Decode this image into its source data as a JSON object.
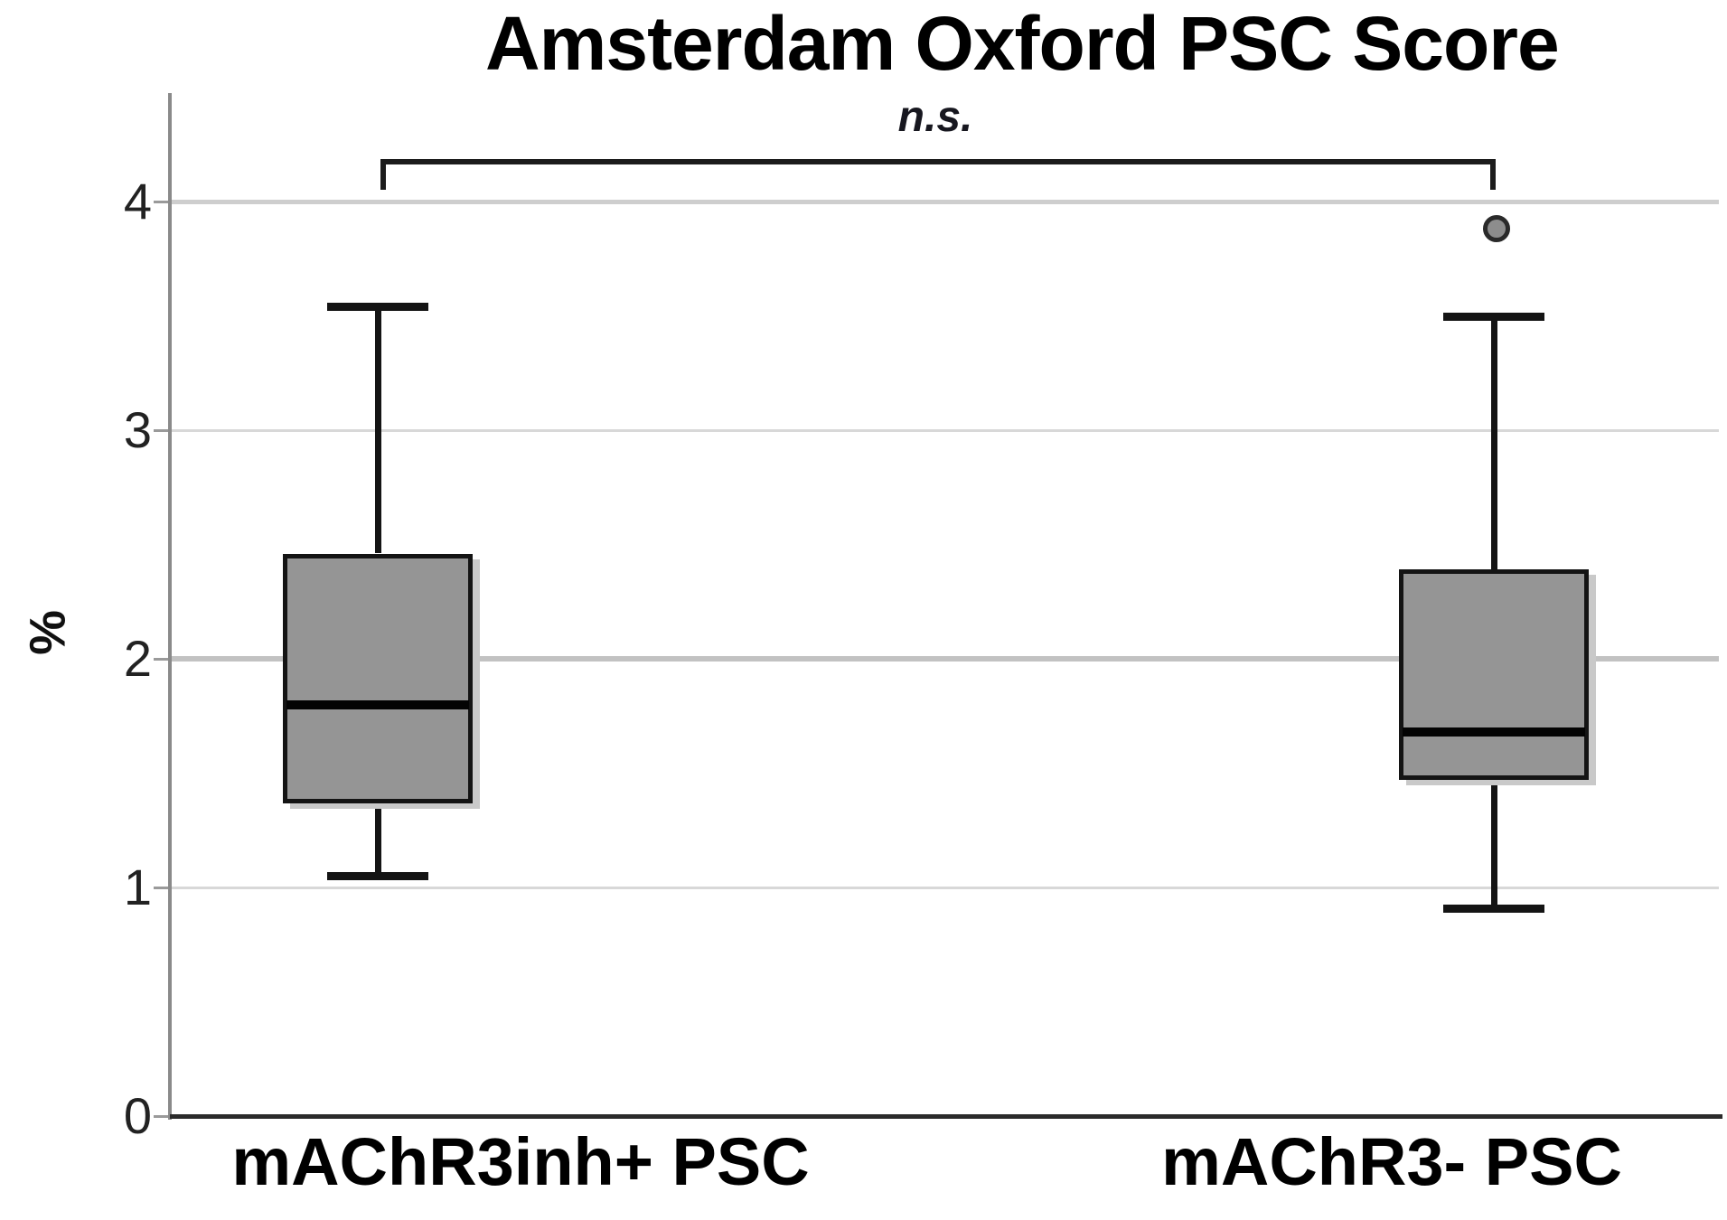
{
  "chart_data": {
    "type": "box",
    "title": "Amsterdam Oxford PSC Score",
    "ylabel": "%",
    "xlabel": "",
    "yticks": [
      0,
      1,
      2,
      3,
      4
    ],
    "ylim": [
      0,
      4.47
    ],
    "grid": "horizontal",
    "legend": "none",
    "annotation": {
      "text": "n.s.",
      "type": "significance-bracket",
      "connects": [
        "mAChR3inh+ PSC",
        "mAChR3- PSC"
      ]
    },
    "categories": [
      "mAChR3inh+ PSC",
      "mAChR3- PSC"
    ],
    "series": [
      {
        "name": "mAChR3inh+ PSC",
        "whisker_low": 1.05,
        "q1": 1.37,
        "median": 1.8,
        "q3": 2.46,
        "whisker_high": 3.54,
        "outliers": []
      },
      {
        "name": "mAChR3- PSC",
        "whisker_low": 0.91,
        "q1": 1.47,
        "median": 1.68,
        "q3": 2.39,
        "whisker_high": 3.5,
        "outliers": [
          3.88
        ]
      }
    ],
    "colors": {
      "box_fill": "#959595",
      "box_border": "#141414",
      "box_shadow": "#c9c9c9",
      "median": "#040404",
      "whisker": "#141414",
      "outlier_fill": "#8d8d8d",
      "outlier_border": "#2a2a2a",
      "gridline_minor": "#d8d8d8",
      "gridline_major": "#c2c2c2",
      "axis_line": "#8a8a8a",
      "baseline": "#2b2b2b",
      "tick_text": "#222222",
      "bracket": "#1c1c1c"
    }
  }
}
